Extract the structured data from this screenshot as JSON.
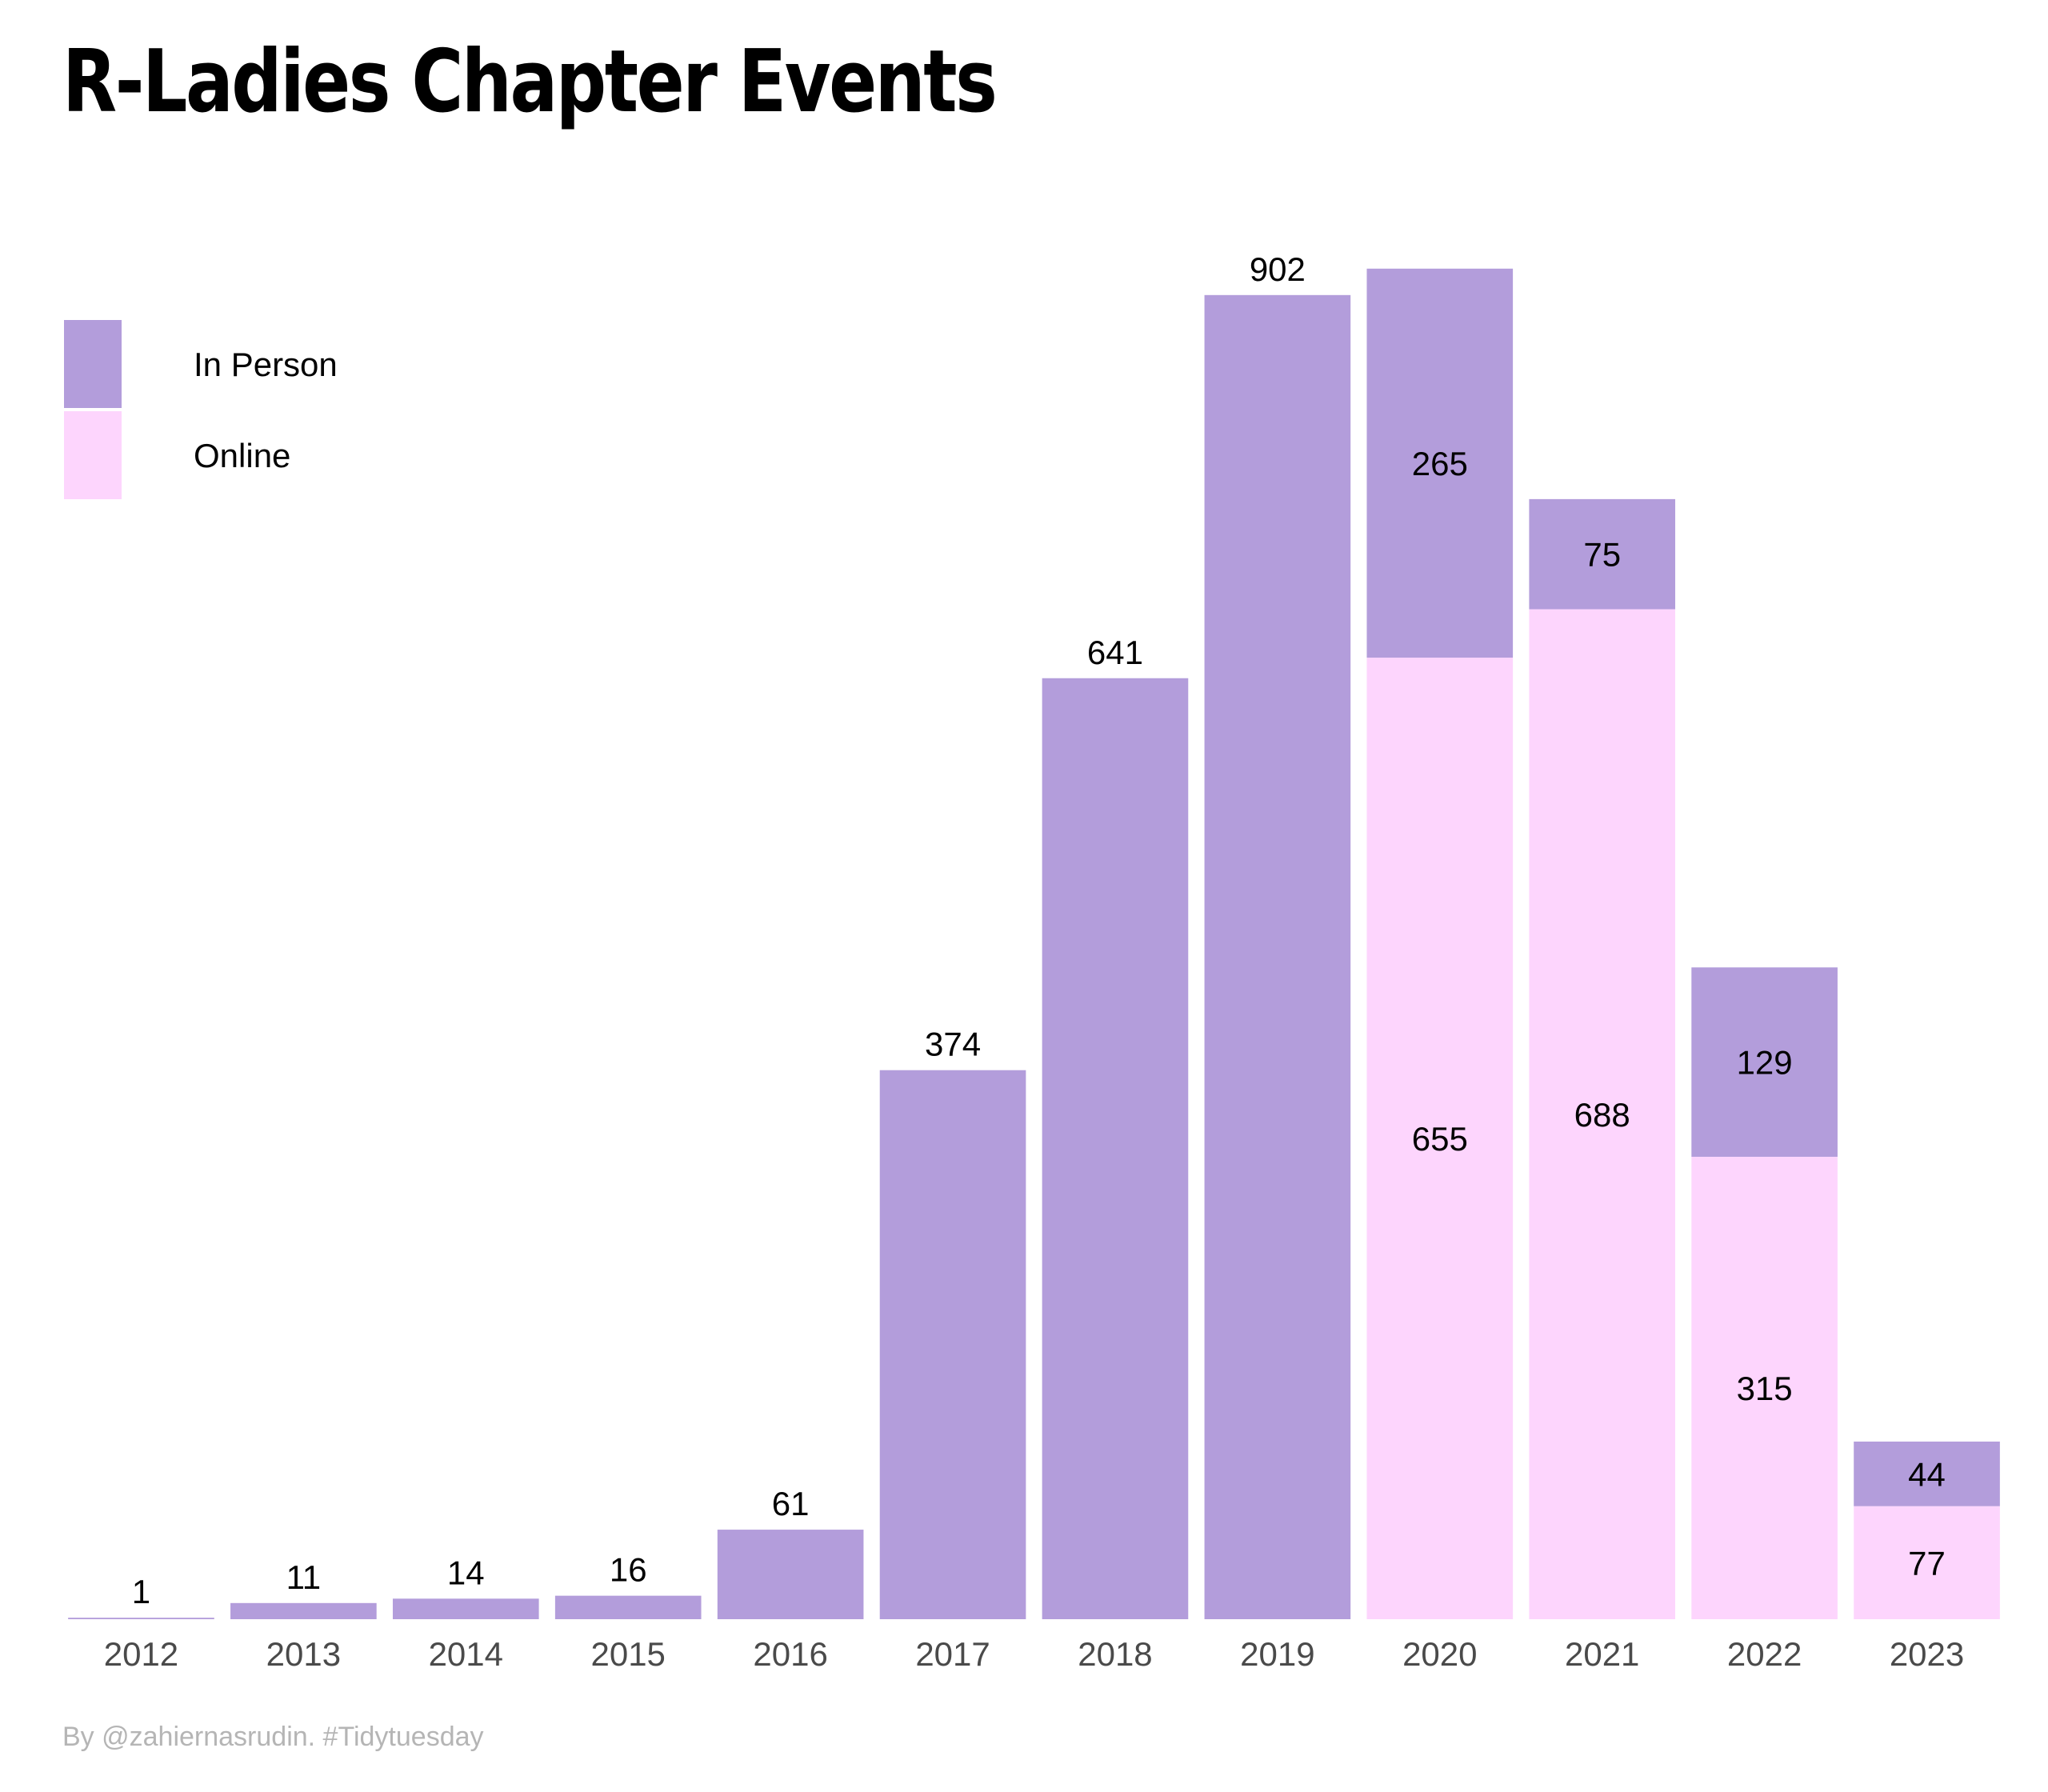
{
  "title": "R-Ladies Chapter Events",
  "caption": "By @zahiernasrudin. #Tidytuesday",
  "colors": {
    "in_person": "#b39ddb",
    "online": "#fdd5fd"
  },
  "chart_data": {
    "type": "bar",
    "stacked": true,
    "title": "R-Ladies Chapter Events",
    "categories": [
      "2012",
      "2013",
      "2014",
      "2015",
      "2016",
      "2017",
      "2018",
      "2019",
      "2020",
      "2021",
      "2022",
      "2023"
    ],
    "series": [
      {
        "name": "In Person",
        "color": "#b39ddb",
        "values": [
          1,
          11,
          14,
          16,
          61,
          374,
          641,
          902,
          265,
          75,
          129,
          44
        ]
      },
      {
        "name": "Online",
        "color": "#fdd5fd",
        "values": [
          0,
          0,
          0,
          0,
          0,
          0,
          0,
          0,
          655,
          688,
          315,
          77
        ]
      }
    ],
    "ylim": [
      0,
      920
    ],
    "grid": false,
    "legend": "top-left",
    "xlabel": "",
    "ylabel": ""
  }
}
